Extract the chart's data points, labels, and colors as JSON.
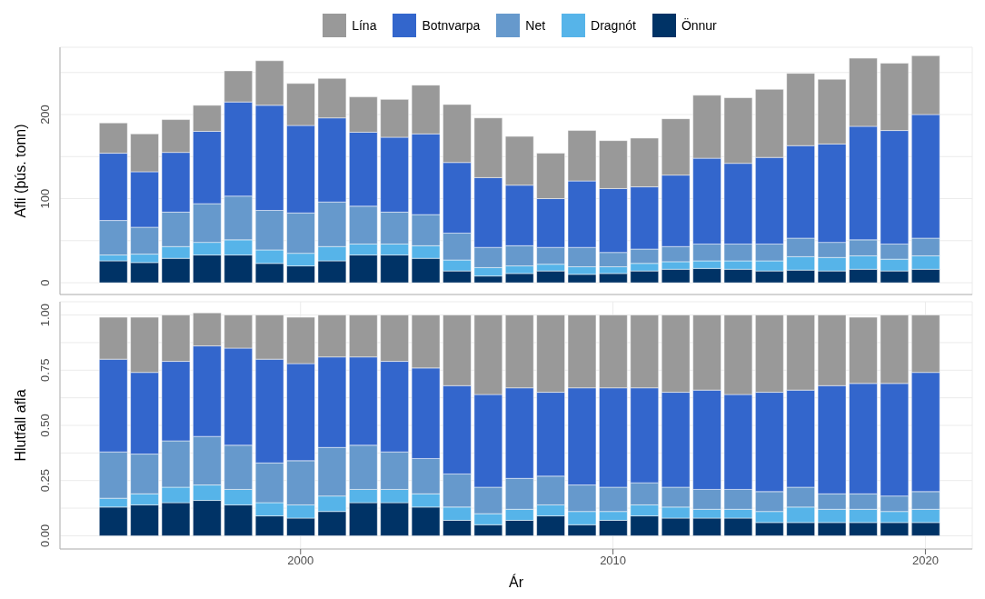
{
  "chart_data": [
    {
      "type": "bar",
      "stacked": true,
      "ylabel": "Afli (þús. tonn)",
      "legend": "top",
      "grid": true,
      "tick_labels": "y",
      "x": [
        1994,
        1995,
        1996,
        1997,
        1998,
        1999,
        2000,
        2001,
        2002,
        2003,
        2004,
        2005,
        2006,
        2007,
        2008,
        2009,
        2010,
        2011,
        2012,
        2013,
        2014,
        2015,
        2016,
        2017,
        2018,
        2019,
        2020
      ],
      "xlim": [
        1992.3,
        2021.5
      ],
      "xticks": [
        2000,
        2010,
        2020
      ],
      "ylim": [
        -14,
        280
      ],
      "yticks": [
        0,
        {
          "value": 50,
          "label": null
        },
        100,
        {
          "value": 150,
          "label": null
        },
        200,
        {
          "value": 250,
          "label": null
        }
      ],
      "series": [
        {
          "name": "Önnur",
          "color": "#003366",
          "values": [
            26,
            24,
            29,
            33,
            33,
            23,
            20,
            26,
            33,
            33,
            29,
            14,
            8,
            11,
            14,
            10,
            11,
            14,
            16,
            17,
            16,
            14,
            15,
            14,
            16,
            14,
            16
          ]
        },
        {
          "name": "Dragnót",
          "color": "#56b4e9",
          "values": [
            7,
            10,
            14,
            15,
            18,
            16,
            15,
            17,
            13,
            13,
            15,
            13,
            10,
            9,
            8,
            9,
            8,
            9,
            9,
            9,
            10,
            12,
            16,
            16,
            16,
            14,
            16
          ]
        },
        {
          "name": "Net",
          "color": "#6699cc",
          "values": [
            41,
            32,
            41,
            46,
            52,
            47,
            48,
            53,
            45,
            38,
            37,
            32,
            24,
            24,
            20,
            23,
            17,
            17,
            18,
            20,
            20,
            20,
            22,
            18,
            19,
            18,
            21
          ]
        },
        {
          "name": "Botnvarpa",
          "color": "#3366cc",
          "values": [
            80,
            66,
            71,
            86,
            112,
            125,
            104,
            100,
            88,
            89,
            96,
            84,
            83,
            72,
            58,
            79,
            76,
            74,
            85,
            102,
            96,
            103,
            110,
            117,
            135,
            135,
            147
          ]
        },
        {
          "name": "Lína",
          "color": "#999999",
          "values": [
            36,
            45,
            39,
            31,
            37,
            53,
            50,
            47,
            42,
            45,
            58,
            69,
            71,
            58,
            54,
            60,
            57,
            58,
            67,
            75,
            78,
            81,
            86,
            77,
            81,
            80,
            70
          ]
        }
      ]
    },
    {
      "type": "bar",
      "stacked": true,
      "ylabel": "Hlutfall afla",
      "xlabel": "Ár",
      "grid": true,
      "x": [
        1994,
        1995,
        1996,
        1997,
        1998,
        1999,
        2000,
        2001,
        2002,
        2003,
        2004,
        2005,
        2006,
        2007,
        2008,
        2009,
        2010,
        2011,
        2012,
        2013,
        2014,
        2015,
        2016,
        2017,
        2018,
        2019,
        2020
      ],
      "xlim": [
        1992.3,
        2021.5
      ],
      "xticks": [
        2000,
        2010,
        2020
      ],
      "ylim": [
        -0.06,
        1.06
      ],
      "yticks": [
        {
          "value": 0,
          "label": "0.00"
        },
        {
          "value": 0.125,
          "label": null
        },
        {
          "value": 0.25,
          "label": "0.25"
        },
        {
          "value": 0.375,
          "label": null
        },
        {
          "value": 0.5,
          "label": "0.50"
        },
        {
          "value": 0.625,
          "label": null
        },
        {
          "value": 0.75,
          "label": "0.75"
        },
        {
          "value": 0.875,
          "label": null
        },
        {
          "value": 1,
          "label": "1.00"
        }
      ],
      "series": [
        {
          "color": "#003366",
          "values": [
            0.13,
            0.14,
            0.15,
            0.16,
            0.14,
            0.09,
            0.08,
            0.11,
            0.15,
            0.15,
            0.13,
            0.07,
            0.05,
            0.07,
            0.09,
            0.05,
            0.07,
            0.09,
            0.08,
            0.08,
            0.08,
            0.06,
            0.06,
            0.06,
            0.06,
            0.06,
            0.06
          ]
        },
        {
          "color": "#56b4e9",
          "values": [
            0.04,
            0.05,
            0.07,
            0.07,
            0.07,
            0.06,
            0.06,
            0.07,
            0.06,
            0.06,
            0.06,
            0.06,
            0.05,
            0.05,
            0.05,
            0.06,
            0.04,
            0.05,
            0.05,
            0.04,
            0.04,
            0.05,
            0.07,
            0.06,
            0.06,
            0.05,
            0.06
          ]
        },
        {
          "color": "#6699cc",
          "values": [
            0.21,
            0.18,
            0.21,
            0.22,
            0.2,
            0.18,
            0.2,
            0.22,
            0.2,
            0.17,
            0.16,
            0.15,
            0.12,
            0.14,
            0.13,
            0.12,
            0.11,
            0.1,
            0.09,
            0.09,
            0.09,
            0.09,
            0.09,
            0.07,
            0.07,
            0.07,
            0.08
          ]
        },
        {
          "color": "#3366cc",
          "values": [
            0.42,
            0.37,
            0.36,
            0.41,
            0.44,
            0.47,
            0.44,
            0.41,
            0.4,
            0.41,
            0.41,
            0.4,
            0.42,
            0.41,
            0.38,
            0.44,
            0.45,
            0.43,
            0.43,
            0.45,
            0.43,
            0.45,
            0.44,
            0.49,
            0.5,
            0.51,
            0.54
          ]
        },
        {
          "color": "#999999",
          "values": [
            0.19,
            0.25,
            0.21,
            0.15,
            0.15,
            0.2,
            0.21,
            0.19,
            0.19,
            0.21,
            0.24,
            0.32,
            0.36,
            0.33,
            0.35,
            0.33,
            0.33,
            0.33,
            0.35,
            0.34,
            0.36,
            0.35,
            0.34,
            0.32,
            0.3,
            0.31,
            0.26
          ]
        }
      ]
    }
  ]
}
